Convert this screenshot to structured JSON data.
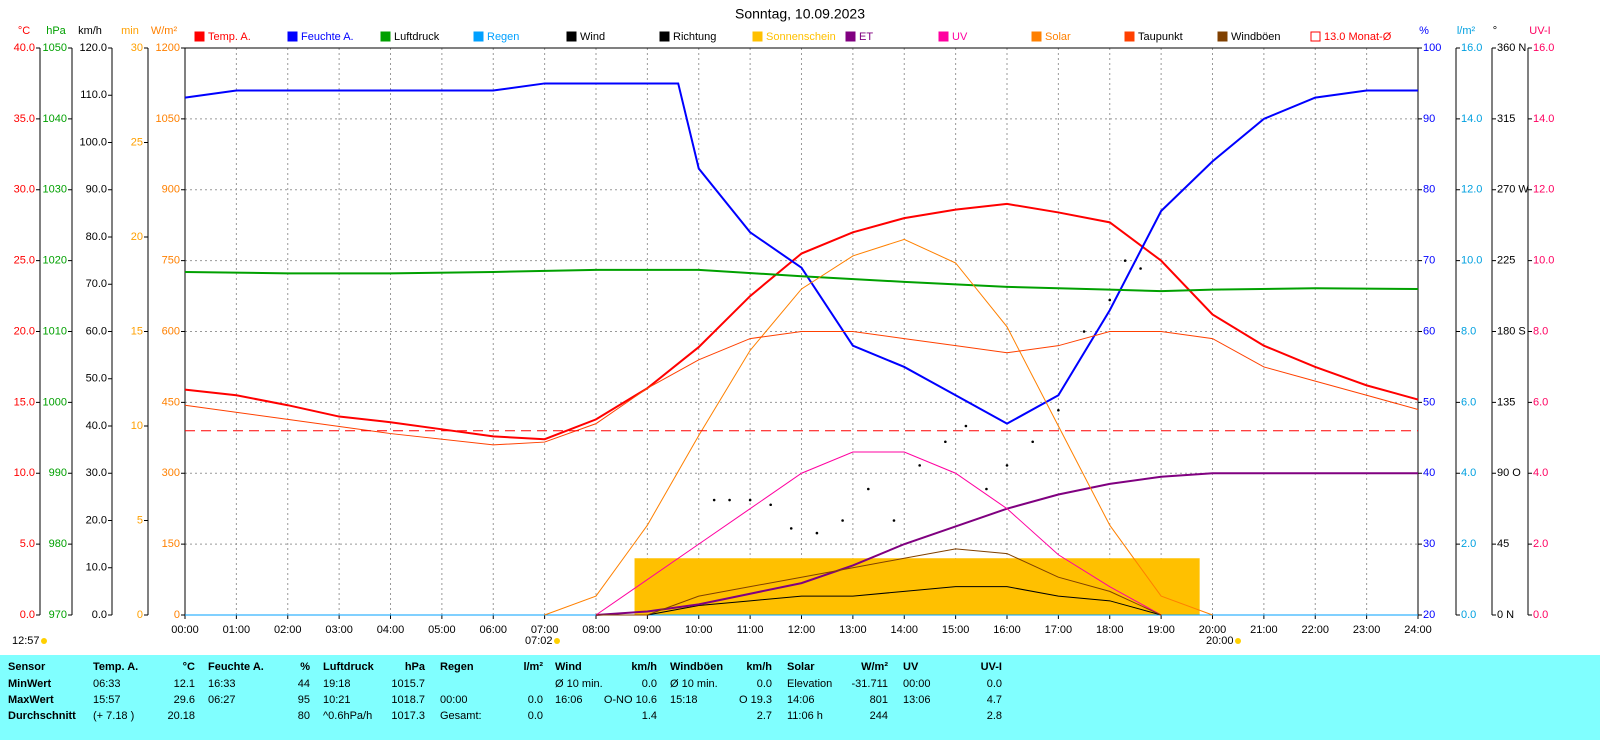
{
  "chart_data": {
    "type": "line",
    "title": "Sonntag, 10.09.2023",
    "updated": "12:57",
    "sunrise": "07:02",
    "sunset": "20:00",
    "xlim": [
      0,
      24
    ],
    "xticks": [
      {
        "value": 0,
        "label": "00:00"
      },
      {
        "value": 1,
        "label": "01:00"
      },
      {
        "value": 2,
        "label": "02:00"
      },
      {
        "value": 3,
        "label": "03:00"
      },
      {
        "value": 4,
        "label": "04:00"
      },
      {
        "value": 5,
        "label": "05:00"
      },
      {
        "value": 6,
        "label": "06:00"
      },
      {
        "value": 7,
        "label": "07:00"
      },
      {
        "value": 8,
        "label": "08:00"
      },
      {
        "value": 9,
        "label": "09:00"
      },
      {
        "value": 10,
        "label": "10:00"
      },
      {
        "value": 11,
        "label": "11:00"
      },
      {
        "value": 12,
        "label": "12:00"
      },
      {
        "value": 13,
        "label": "13:00"
      },
      {
        "value": 14,
        "label": "14:00"
      },
      {
        "value": 15,
        "label": "15:00"
      },
      {
        "value": 16,
        "label": "16:00"
      },
      {
        "value": 17,
        "label": "17:00"
      },
      {
        "value": 18,
        "label": "18:00"
      },
      {
        "value": 19,
        "label": "19:00"
      },
      {
        "value": 20,
        "label": "20:00"
      },
      {
        "value": 21,
        "label": "21:00"
      },
      {
        "value": 22,
        "label": "22:00"
      },
      {
        "value": 23,
        "label": "23:00"
      },
      {
        "value": 24,
        "label": "24:00"
      }
    ],
    "grid": true,
    "axes": [
      {
        "label": "°C",
        "color": "#ff0000",
        "lim": [
          0,
          40
        ],
        "ticks": [
          {
            "value": 0,
            "label": "0.0"
          },
          {
            "value": 5,
            "label": "5.0"
          },
          {
            "value": 10,
            "label": "10.0"
          },
          {
            "value": 15,
            "label": "15.0"
          },
          {
            "value": 20,
            "label": "20.0"
          },
          {
            "value": 25,
            "label": "25.0"
          },
          {
            "value": 30,
            "label": "30.0"
          },
          {
            "value": 35,
            "label": "35.0"
          },
          {
            "value": 40,
            "label": "40.0"
          }
        ]
      },
      {
        "label": "hPa",
        "color": "#00a000",
        "lim": [
          970,
          1050
        ],
        "ticks": [
          970,
          980,
          990,
          1000,
          1010,
          1020,
          1030,
          1040,
          1050
        ]
      },
      {
        "label": "km/h",
        "color": "#000000",
        "lim": [
          0,
          120
        ],
        "ticks": [
          {
            "value": 0,
            "label": "0.0"
          },
          {
            "value": 10,
            "label": "10.0"
          },
          {
            "value": 20,
            "label": "20.0"
          },
          {
            "value": 30,
            "label": "30.0"
          },
          {
            "value": 40,
            "label": "40.0"
          },
          {
            "value": 50,
            "label": "50.0"
          },
          {
            "value": 60,
            "label": "60.0"
          },
          {
            "value": 70,
            "label": "70.0"
          },
          {
            "value": 80,
            "label": "80.0"
          },
          {
            "value": 90,
            "label": "90.0"
          },
          {
            "value": 100,
            "label": "100.0"
          },
          {
            "value": 110,
            "label": "110.0"
          },
          {
            "value": 120,
            "label": "120.0"
          }
        ]
      },
      {
        "label": "min",
        "color": "#ffa000",
        "lim": [
          0,
          30
        ],
        "ticks": [
          0,
          5,
          10,
          15,
          20,
          25,
          30
        ]
      },
      {
        "label": "W/m²",
        "color": "#ff8000",
        "lim": [
          0,
          1200
        ],
        "ticks": [
          0,
          150,
          300,
          450,
          600,
          750,
          900,
          1050,
          1200
        ]
      },
      {
        "label": "%",
        "color": "#0000ff",
        "lim": [
          20,
          100
        ],
        "ticks": [
          20,
          30,
          40,
          50,
          60,
          70,
          80,
          90,
          100
        ]
      },
      {
        "label": "l/m²",
        "color": "#00a0e0",
        "lim": [
          0,
          16
        ],
        "ticks": [
          {
            "value": 0,
            "label": "0.0"
          },
          {
            "value": 2,
            "label": "2.0"
          },
          {
            "value": 4,
            "label": "4.0"
          },
          {
            "value": 6,
            "label": "6.0"
          },
          {
            "value": 8,
            "label": "8.0"
          },
          {
            "value": 10,
            "label": "10.0"
          },
          {
            "value": 12,
            "label": "12.0"
          },
          {
            "value": 14,
            "label": "14.0"
          },
          {
            "value": 16,
            "label": "16.0"
          }
        ]
      },
      {
        "label": "°",
        "color": "#000000",
        "lim": [
          0,
          360
        ],
        "ticks": [
          {
            "value": 0,
            "label": "0 N"
          },
          45,
          {
            "value": 90,
            "label": "90 O"
          },
          135,
          {
            "value": 180,
            "label": "180 S"
          },
          225,
          {
            "value": 270,
            "label": "270 W"
          },
          315,
          {
            "value": 360,
            "label": "360 N"
          }
        ]
      },
      {
        "label": "UV-I",
        "color": "#ff0060",
        "lim": [
          0,
          16
        ],
        "ticks": [
          {
            "value": 0,
            "label": "0.0"
          },
          {
            "value": 2,
            "label": "2.0"
          },
          {
            "value": 4,
            "label": "4.0"
          },
          {
            "value": 6,
            "label": "6.0"
          },
          {
            "value": 8,
            "label": "8.0"
          },
          {
            "value": 10,
            "label": "10.0"
          },
          {
            "value": 12,
            "label": "12.0"
          },
          {
            "value": 14,
            "label": "14.0"
          },
          {
            "value": 16,
            "label": "16.0"
          }
        ]
      }
    ],
    "series": [
      {
        "name": "Temp. A.",
        "color": "#ff0000",
        "axis": "°C",
        "style": "line",
        "x": [
          0,
          1,
          2,
          3,
          4,
          5,
          6,
          7,
          8,
          9,
          10,
          11,
          12,
          13,
          14,
          15,
          16,
          17,
          18,
          19,
          20,
          21,
          22,
          23,
          24
        ],
        "values": [
          15.9,
          15.5,
          14.8,
          14.0,
          13.6,
          13.1,
          12.6,
          12.4,
          13.8,
          16.0,
          18.9,
          22.5,
          25.5,
          27.0,
          28.0,
          28.6,
          29.0,
          28.4,
          27.7,
          25.0,
          21.2,
          19.0,
          17.5,
          16.2,
          15.2
        ]
      },
      {
        "name": "Feuchte A.",
        "color": "#0000ff",
        "axis": "%",
        "style": "line",
        "x": [
          0,
          1,
          2,
          3,
          4,
          5,
          6,
          7,
          8,
          9,
          9.6,
          10,
          11,
          12,
          13,
          14,
          15,
          16,
          17,
          18,
          19,
          20,
          21,
          22,
          23,
          24
        ],
        "values": [
          93,
          94,
          94,
          94,
          94,
          94,
          94,
          95,
          95,
          95,
          95,
          83,
          74,
          69,
          58,
          55,
          51,
          47,
          51,
          63,
          77,
          84,
          90,
          93,
          94,
          94
        ]
      },
      {
        "name": "Luftdruck",
        "color": "#00a000",
        "axis": "hPa",
        "style": "line",
        "x": [
          0,
          2,
          4,
          6,
          8,
          10,
          12,
          14,
          16,
          18,
          19,
          20,
          22,
          24
        ],
        "values": [
          1018.4,
          1018.2,
          1018.2,
          1018.4,
          1018.7,
          1018.7,
          1017.8,
          1017.0,
          1016.3,
          1015.9,
          1015.7,
          1015.9,
          1016.1,
          1016.0
        ]
      },
      {
        "name": "Regen",
        "color": "#00a0ff",
        "axis": "l/m²",
        "style": "line",
        "x": [
          0,
          24
        ],
        "values": [
          0,
          0
        ]
      },
      {
        "name": "Wind",
        "color": "#000000",
        "axis": "km/h",
        "style": "line",
        "x": [
          8,
          9,
          10,
          11,
          12,
          13,
          14,
          15,
          16,
          17,
          18,
          19
        ],
        "values": [
          0,
          0,
          2,
          3,
          4,
          4,
          5,
          6,
          6,
          4,
          3,
          0
        ]
      },
      {
        "name": "Richtung",
        "color": "#000000",
        "axis": "°",
        "style": "dots",
        "x": [
          10.3,
          10.6,
          11,
          11.4,
          11.8,
          12.3,
          12.8,
          13.3,
          13.8,
          14.3,
          14.8,
          15.2,
          15.6,
          16,
          16.5,
          17,
          17.5,
          18,
          18.3,
          18.6
        ],
        "values": [
          73,
          73,
          73,
          70,
          55,
          52,
          60,
          80,
          60,
          95,
          110,
          120,
          80,
          95,
          110,
          130,
          180,
          200,
          225,
          220
        ]
      },
      {
        "name": "Sonnenschein",
        "color": "#ffc000",
        "axis": "min",
        "style": "area",
        "x": [
          8.75,
          19.75
        ],
        "values": [
          3,
          3
        ]
      },
      {
        "name": "ET",
        "color": "#800080",
        "axis": "l/m²",
        "style": "line",
        "x": [
          8,
          9,
          10,
          11,
          12,
          13,
          14,
          15,
          16,
          17,
          18,
          19,
          20,
          24
        ],
        "values": [
          0,
          0.1,
          0.3,
          0.6,
          0.9,
          1.4,
          2.0,
          2.5,
          3.0,
          3.4,
          3.7,
          3.9,
          4.0,
          4.0
        ]
      },
      {
        "name": "UV",
        "color": "#ff00a0",
        "axis": "UV-I",
        "style": "line",
        "x": [
          8,
          9,
          10,
          11,
          12,
          13,
          14,
          15,
          16,
          17,
          18,
          19
        ],
        "values": [
          0,
          1.0,
          2.0,
          3.0,
          4.0,
          4.6,
          4.6,
          4.0,
          3.0,
          1.7,
          0.8,
          0
        ]
      },
      {
        "name": "Solar",
        "color": "#ff8000",
        "axis": "W/m²",
        "style": "line",
        "x": [
          7,
          8,
          9,
          10,
          11,
          12,
          13,
          14,
          15,
          16,
          17,
          18,
          19,
          20
        ],
        "values": [
          0,
          40,
          190,
          380,
          560,
          690,
          760,
          795,
          745,
          610,
          400,
          190,
          40,
          0
        ]
      },
      {
        "name": "Taupunkt",
        "color": "#ff4000",
        "axis": "°C",
        "style": "line",
        "x": [
          0,
          2,
          4,
          6,
          7,
          8,
          9,
          10,
          11,
          12,
          13,
          14,
          15,
          16,
          17,
          18,
          19,
          20,
          21,
          22,
          23,
          24
        ],
        "values": [
          14.8,
          13.8,
          12.8,
          12.0,
          12.2,
          13.5,
          16.0,
          18.0,
          19.5,
          20.0,
          20.0,
          19.5,
          19.0,
          18.5,
          19.0,
          20.0,
          20.0,
          19.5,
          17.5,
          16.5,
          15.5,
          14.5
        ]
      },
      {
        "name": "Windböen",
        "color": "#804000",
        "axis": "km/h",
        "style": "line",
        "x": [
          8,
          9,
          10,
          11,
          12,
          13,
          14,
          15,
          16,
          17,
          18,
          19
        ],
        "values": [
          0,
          0,
          4,
          6,
          8,
          10,
          12,
          14,
          13,
          8,
          5,
          0
        ]
      },
      {
        "name": "13.0 Monat-Ø",
        "color": "#ff0000",
        "axis": "°C",
        "style": "dashed",
        "x": [
          0,
          24
        ],
        "values": [
          13.0,
          13.0
        ]
      }
    ]
  },
  "table": {
    "header": [
      "Sensor",
      "Temp. A.",
      "°C",
      "Feuchte A.",
      "%",
      "Luftdruck",
      "hPa",
      "Regen",
      "l/m²",
      "Wind",
      "km/h",
      "Windböen",
      "km/h",
      "Solar",
      "W/m²",
      "UV",
      "UV-I"
    ],
    "rows": [
      [
        "MinWert",
        "06:33",
        "12.1",
        "16:33",
        "44",
        "19:18",
        "1015.7",
        null,
        null,
        "Ø 10 min.",
        "0.0",
        "Ø 10 min.",
        "0.0",
        "Elevation",
        "-31.711",
        "00:00",
        "0.0"
      ],
      [
        "MaxWert",
        "15:57",
        "29.6",
        "06:27",
        "95",
        "10:21",
        "1018.7",
        "00:00",
        "0.0",
        "16:06",
        "O-NO 10.6",
        "15:18",
        "O 19.3",
        "14:06",
        "801",
        "13:06",
        "4.7"
      ],
      [
        "Durchschnitt",
        "(+ 7.18 )",
        "20.18",
        null,
        "80",
        "^0.6hPa/h",
        "1017.3",
        "Gesamt:",
        "0.0",
        null,
        "1.4",
        null,
        "2.7",
        "11:06 h",
        "244",
        null,
        "2.8"
      ]
    ]
  }
}
